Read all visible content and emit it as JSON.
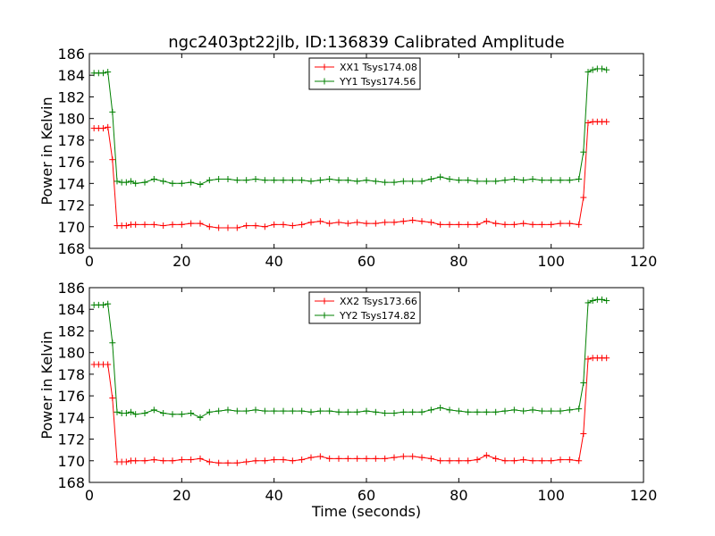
{
  "chart_data": {
    "title": "ngc2403pt22jlb, ID:136839 Calibrated Amplitude",
    "xlabel": "Time (seconds)",
    "legend_placement": "upper center",
    "grid": false,
    "panels": [
      {
        "type": "line",
        "ylabel": "Power in Kelvin",
        "xlim": [
          0,
          120
        ],
        "ylim": [
          168,
          186
        ],
        "xticks": [
          "0",
          "20",
          "40",
          "60",
          "80",
          "100",
          "120"
        ],
        "yticks": [
          "168",
          "170",
          "172",
          "174",
          "176",
          "178",
          "180",
          "182",
          "184",
          "186"
        ],
        "series": [
          {
            "name": "XX1 Tsys174.08",
            "color": "#ff0000",
            "x": [
              1,
              2,
              3,
              4,
              5,
              6,
              7,
              8,
              9,
              10,
              12,
              14,
              16,
              18,
              20,
              22,
              24,
              26,
              28,
              30,
              32,
              34,
              36,
              38,
              40,
              42,
              44,
              46,
              48,
              50,
              52,
              54,
              56,
              58,
              60,
              62,
              64,
              66,
              68,
              70,
              72,
              74,
              76,
              78,
              80,
              82,
              84,
              86,
              88,
              90,
              92,
              94,
              96,
              98,
              100,
              102,
              104,
              106,
              107,
              108,
              109,
              110,
              111,
              112
            ],
            "y": [
              179.1,
              179.1,
              179.1,
              179.2,
              176.2,
              170.1,
              170.1,
              170.1,
              170.2,
              170.2,
              170.2,
              170.2,
              170.1,
              170.2,
              170.2,
              170.3,
              170.3,
              170.0,
              169.9,
              169.9,
              169.9,
              170.1,
              170.1,
              170.0,
              170.2,
              170.2,
              170.1,
              170.2,
              170.4,
              170.5,
              170.3,
              170.4,
              170.3,
              170.4,
              170.3,
              170.3,
              170.4,
              170.4,
              170.5,
              170.6,
              170.5,
              170.4,
              170.2,
              170.2,
              170.2,
              170.2,
              170.2,
              170.5,
              170.3,
              170.2,
              170.2,
              170.3,
              170.2,
              170.2,
              170.2,
              170.3,
              170.3,
              170.2,
              172.7,
              179.6,
              179.7,
              179.7,
              179.7,
              179.7
            ]
          },
          {
            "name": "YY1 Tsys174.56",
            "color": "#008000",
            "x": [
              1,
              2,
              3,
              4,
              5,
              6,
              7,
              8,
              9,
              10,
              12,
              14,
              16,
              18,
              20,
              22,
              24,
              26,
              28,
              30,
              32,
              34,
              36,
              38,
              40,
              42,
              44,
              46,
              48,
              50,
              52,
              54,
              56,
              58,
              60,
              62,
              64,
              66,
              68,
              70,
              72,
              74,
              76,
              78,
              80,
              82,
              84,
              86,
              88,
              90,
              92,
              94,
              96,
              98,
              100,
              102,
              104,
              106,
              107,
              108,
              109,
              110,
              111,
              112
            ],
            "y": [
              184.2,
              184.2,
              184.2,
              184.3,
              180.6,
              174.2,
              174.1,
              174.1,
              174.2,
              174.0,
              174.1,
              174.4,
              174.2,
              174.0,
              174.0,
              174.1,
              173.9,
              174.3,
              174.4,
              174.4,
              174.3,
              174.3,
              174.4,
              174.3,
              174.3,
              174.3,
              174.3,
              174.3,
              174.2,
              174.3,
              174.4,
              174.3,
              174.3,
              174.2,
              174.3,
              174.2,
              174.1,
              174.1,
              174.2,
              174.2,
              174.2,
              174.4,
              174.6,
              174.4,
              174.3,
              174.3,
              174.2,
              174.2,
              174.2,
              174.3,
              174.4,
              174.3,
              174.4,
              174.3,
              174.3,
              174.3,
              174.3,
              174.4,
              176.9,
              184.3,
              184.5,
              184.6,
              184.6,
              184.5
            ]
          }
        ]
      },
      {
        "type": "line",
        "ylabel": "Power in Kelvin",
        "xlim": [
          0,
          120
        ],
        "ylim": [
          168,
          186
        ],
        "xticks": [
          "0",
          "20",
          "40",
          "60",
          "80",
          "100",
          "120"
        ],
        "yticks": [
          "168",
          "170",
          "172",
          "174",
          "176",
          "178",
          "180",
          "182",
          "184",
          "186"
        ],
        "series": [
          {
            "name": "XX2 Tsys173.66",
            "color": "#ff0000",
            "x": [
              1,
              2,
              3,
              4,
              5,
              6,
              7,
              8,
              9,
              10,
              12,
              14,
              16,
              18,
              20,
              22,
              24,
              26,
              28,
              30,
              32,
              34,
              36,
              38,
              40,
              42,
              44,
              46,
              48,
              50,
              52,
              54,
              56,
              58,
              60,
              62,
              64,
              66,
              68,
              70,
              72,
              74,
              76,
              78,
              80,
              82,
              84,
              86,
              88,
              90,
              92,
              94,
              96,
              98,
              100,
              102,
              104,
              106,
              107,
              108,
              109,
              110,
              111,
              112
            ],
            "y": [
              178.9,
              178.9,
              178.9,
              178.9,
              175.8,
              169.9,
              169.9,
              169.9,
              170.0,
              170.0,
              170.0,
              170.1,
              170.0,
              170.0,
              170.1,
              170.1,
              170.2,
              169.9,
              169.8,
              169.8,
              169.8,
              169.9,
              170.0,
              170.0,
              170.1,
              170.1,
              170.0,
              170.1,
              170.3,
              170.4,
              170.2,
              170.2,
              170.2,
              170.2,
              170.2,
              170.2,
              170.2,
              170.3,
              170.4,
              170.4,
              170.3,
              170.2,
              170.0,
              170.0,
              170.0,
              170.0,
              170.1,
              170.5,
              170.2,
              170.0,
              170.0,
              170.1,
              170.0,
              170.0,
              170.0,
              170.1,
              170.1,
              170.0,
              172.5,
              179.4,
              179.5,
              179.5,
              179.5,
              179.5
            ]
          },
          {
            "name": "YY2 Tsys174.82",
            "color": "#008000",
            "x": [
              1,
              2,
              3,
              4,
              5,
              6,
              7,
              8,
              9,
              10,
              12,
              14,
              16,
              18,
              20,
              22,
              24,
              26,
              28,
              30,
              32,
              34,
              36,
              38,
              40,
              42,
              44,
              46,
              48,
              50,
              52,
              54,
              56,
              58,
              60,
              62,
              64,
              66,
              68,
              70,
              72,
              74,
              76,
              78,
              80,
              82,
              84,
              86,
              88,
              90,
              92,
              94,
              96,
              98,
              100,
              102,
              104,
              106,
              107,
              108,
              109,
              110,
              111,
              112
            ],
            "y": [
              184.4,
              184.4,
              184.4,
              184.5,
              180.9,
              174.5,
              174.4,
              174.4,
              174.5,
              174.3,
              174.4,
              174.7,
              174.4,
              174.3,
              174.3,
              174.4,
              174.0,
              174.5,
              174.6,
              174.7,
              174.6,
              174.6,
              174.7,
              174.6,
              174.6,
              174.6,
              174.6,
              174.6,
              174.5,
              174.6,
              174.6,
              174.5,
              174.5,
              174.5,
              174.6,
              174.5,
              174.4,
              174.4,
              174.5,
              174.5,
              174.5,
              174.7,
              174.9,
              174.7,
              174.6,
              174.5,
              174.5,
              174.5,
              174.5,
              174.6,
              174.7,
              174.6,
              174.7,
              174.6,
              174.6,
              174.6,
              174.7,
              174.8,
              177.2,
              184.6,
              184.8,
              184.9,
              184.9,
              184.8
            ]
          }
        ]
      }
    ]
  }
}
